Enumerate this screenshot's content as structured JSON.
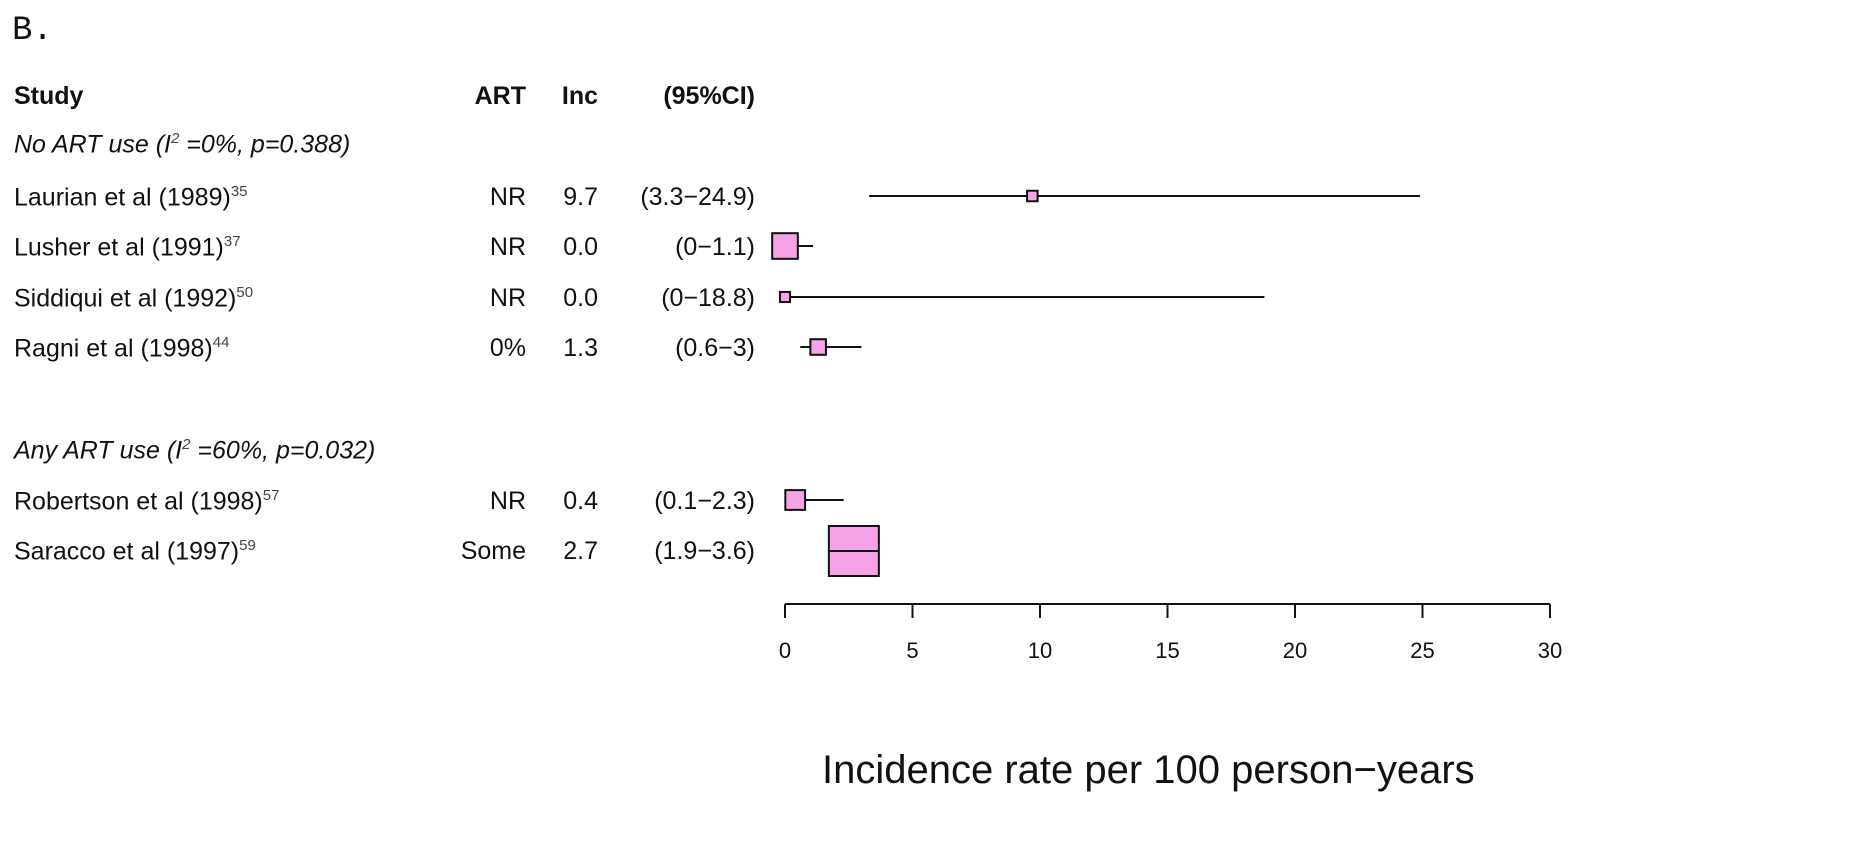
{
  "panel_label": "B.",
  "headers": {
    "study": "Study",
    "art": "ART",
    "inc": "Inc",
    "ci": "(95%CI)"
  },
  "groups": [
    {
      "label_prefix": "No ART use (I",
      "label_sup": "2",
      "label_suffix": " =0%, p=0.388)"
    },
    {
      "label_prefix": "Any ART use (I",
      "label_sup": "2",
      "label_suffix": " =60%, p=0.032)"
    }
  ],
  "rows": [
    {
      "study": "Laurian et al (1989)",
      "ref": "35",
      "art": "NR",
      "inc": "9.7",
      "ci": "(3.3−24.9)"
    },
    {
      "study": "Lusher et al (1991)",
      "ref": "37",
      "art": "NR",
      "inc": "0.0",
      "ci": "(0−1.1)"
    },
    {
      "study": "Siddiqui et al (1992)",
      "ref": "50",
      "art": "NR",
      "inc": "0.0",
      "ci": "(0−18.8)"
    },
    {
      "study": "Ragni et al (1998)",
      "ref": "44",
      "art": "0%",
      "inc": "1.3",
      "ci": "(0.6−3)"
    },
    {
      "study": "Robertson et al (1998)",
      "ref": "57",
      "art": "NR",
      "inc": "0.4",
      "ci": "(0.1−2.3)"
    },
    {
      "study": "Saracco et al (1997)",
      "ref": "59",
      "art": "Some",
      "inc": "2.7",
      "ci": "(1.9−3.6)"
    }
  ],
  "chart_data": {
    "type": "scatter",
    "xlabel": "Incidence rate per 100 person−years",
    "xlim": [
      0,
      30
    ],
    "xticks": [
      0,
      5,
      10,
      15,
      20,
      25,
      30
    ],
    "points": [
      {
        "est": 9.7,
        "lo": 3.3,
        "hi": 24.9,
        "weight": 0.06
      },
      {
        "est": 0.0,
        "lo": 0.0,
        "hi": 1.1,
        "weight": 0.42
      },
      {
        "est": 0.0,
        "lo": 0.0,
        "hi": 18.8,
        "weight": 0.05
      },
      {
        "est": 1.3,
        "lo": 0.6,
        "hi": 3.0,
        "weight": 0.18
      },
      {
        "est": 0.4,
        "lo": 0.1,
        "hi": 2.3,
        "weight": 0.28
      },
      {
        "est": 2.7,
        "lo": 1.9,
        "hi": 3.6,
        "weight": 1.0
      }
    ],
    "box_color": "#f5a3e6"
  }
}
